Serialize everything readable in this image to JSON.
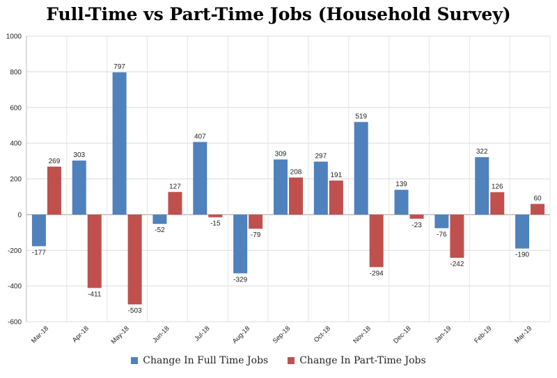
{
  "chart_data": {
    "type": "bar",
    "title": "Full-Time vs Part-Time Jobs (Household Survey)",
    "categories": [
      "Mar-18",
      "Apr-18",
      "May-18",
      "Jun-18",
      "Jul-18",
      "Aug-18",
      "Sep-18",
      "Oct-18",
      "Nov-18",
      "Dec-18",
      "Jan-19",
      "Feb-19",
      "Mar-19"
    ],
    "series": [
      {
        "name": "Change In Full Time Jobs",
        "color": "#4f81bd",
        "values": [
          -177,
          303,
          797,
          -52,
          407,
          -329,
          309,
          297,
          519,
          139,
          -76,
          322,
          -190
        ]
      },
      {
        "name": "Change In Part-Time Jobs",
        "color": "#c0504d",
        "values": [
          269,
          -411,
          -503,
          127,
          -15,
          -79,
          208,
          191,
          -294,
          -23,
          -242,
          126,
          60
        ]
      }
    ],
    "ylim": [
      -600,
      1000
    ],
    "yticks": [
      -600,
      -400,
      -200,
      0,
      200,
      400,
      600,
      800,
      1000
    ],
    "grid": true,
    "legend_position": "bottom-center"
  }
}
